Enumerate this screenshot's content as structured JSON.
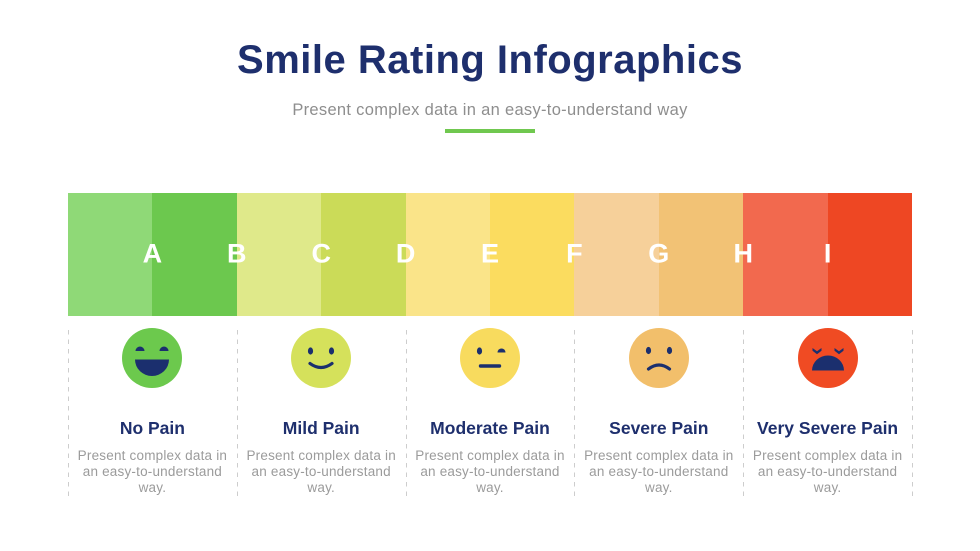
{
  "header": {
    "title": "Smile Rating Infographics",
    "subtitle": "Present complex data in an easy-to-understand way"
  },
  "theme": {
    "navy": "#1E2F6D",
    "subtitle_gray": "#8E8E8E",
    "text_gray": "#9B9B9B",
    "accent_green": "#70C84F",
    "divider_gray": "#CDCDCD",
    "feature_navy": "#1B2F6E"
  },
  "scale_bar": {
    "letters": [
      "A",
      "B",
      "C",
      "D",
      "E",
      "F",
      "G",
      "H",
      "I"
    ],
    "segment_colors": [
      "#8FD977",
      "#6CC84E",
      "#DFE98A",
      "#CBDB58",
      "#FAE489",
      "#FBDC5F",
      "#F6D09A",
      "#F2C275",
      "#F2694E",
      "#EE4723"
    ]
  },
  "ratings": [
    {
      "label": "No Pain",
      "face": "laugh",
      "color": "#6CC94D",
      "description": "Present complex data in an easy-to-understand way."
    },
    {
      "label": "Mild Pain",
      "face": "smile",
      "color": "#D5E15B",
      "description": "Present complex data in an easy-to-understand way."
    },
    {
      "label": "Moderate Pain",
      "face": "neutral",
      "color": "#F8DB5E",
      "description": "Present complex data in an easy-to-understand way."
    },
    {
      "label": "Severe Pain",
      "face": "sad",
      "color": "#F2BF6B",
      "description": "Present complex data in an easy-to-understand way."
    },
    {
      "label": "Very Severe Pain",
      "face": "angry",
      "color": "#F04B23",
      "description": "Present complex data in an easy-to-understand way."
    }
  ]
}
